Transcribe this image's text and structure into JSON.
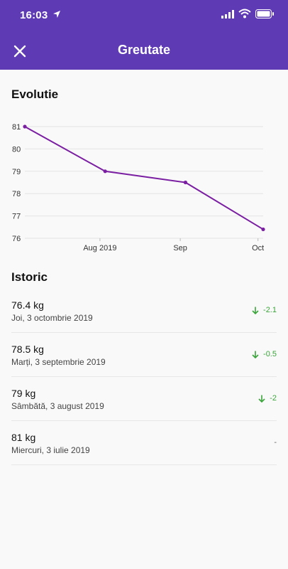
{
  "status": {
    "time": "16:03"
  },
  "header": {
    "title": "Greutate"
  },
  "evolution_title": "Evolutie",
  "history_title": "Istoric",
  "chart_data": {
    "type": "line",
    "title": "",
    "x": [
      "3 iulie 2019",
      "3 august 2019",
      "3 septembrie 2019",
      "3 octombrie 2019"
    ],
    "x_tick_labels": [
      "Aug 2019",
      "Sep",
      "Oct"
    ],
    "y_ticks": [
      "81",
      "80",
      "79",
      "78",
      "77",
      "76"
    ],
    "ylim": [
      76,
      81
    ],
    "series": [
      {
        "values": [
          81,
          79,
          78.5,
          76.4
        ]
      }
    ],
    "color": "#7b1fa2"
  },
  "history": [
    {
      "weight": "76.4 kg",
      "date": "Joi, 3 octombrie 2019",
      "delta": "-2.1",
      "trend": "down"
    },
    {
      "weight": "78.5 kg",
      "date": "Marți, 3 septembrie 2019",
      "delta": "-0.5",
      "trend": "down"
    },
    {
      "weight": "79 kg",
      "date": "Sâmbătă, 3 august 2019",
      "delta": "-2",
      "trend": "down"
    },
    {
      "weight": "81 kg",
      "date": "Miercuri, 3 iulie 2019",
      "delta": "-",
      "trend": "none"
    }
  ]
}
